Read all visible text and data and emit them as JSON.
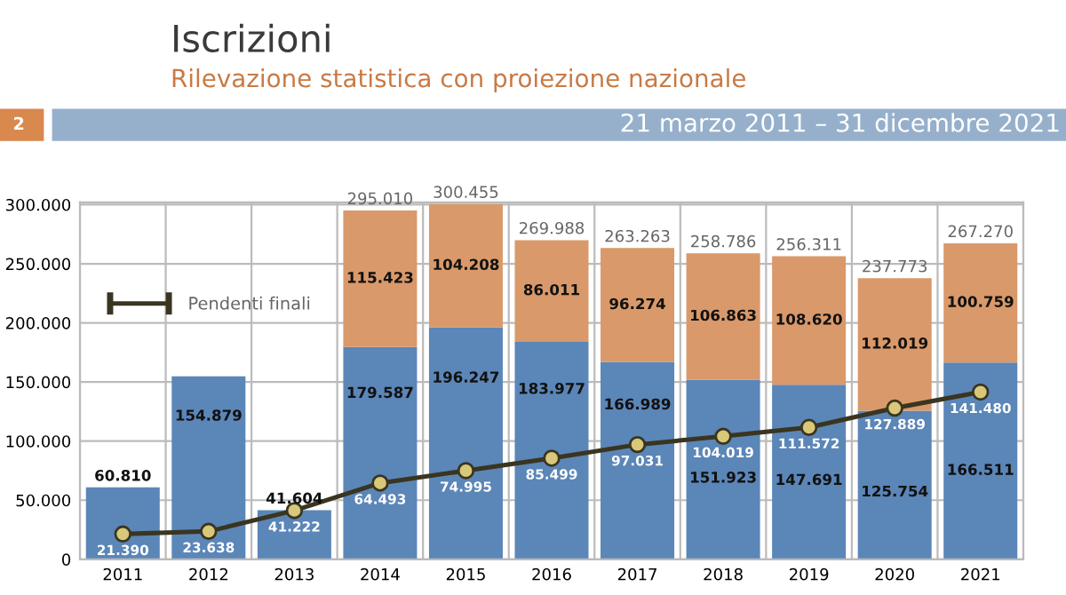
{
  "chart_data": {
    "type": "bar",
    "title": "Iscrizioni",
    "subtitle": "Rilevazione statistica con proiezione nazionale",
    "annotations": [
      "2",
      "21 marzo 2011 – 31 dicembre 2021"
    ],
    "categories": [
      "2011",
      "2012",
      "2013",
      "2014",
      "2015",
      "2016",
      "2017",
      "2018",
      "2019",
      "2020",
      "2021"
    ],
    "stacked": true,
    "series": [
      {
        "color": "#5b86b8",
        "values": [
          60810,
          154879,
          41604,
          179587,
          196247,
          183977,
          166989,
          151923,
          147691,
          125754,
          166511
        ],
        "value_labels": [
          "60.810",
          "154.879",
          "41.604",
          "179.587",
          "196.247",
          "183.977",
          "166.989",
          "151.923",
          "147.691",
          "125.754",
          "166.511"
        ]
      },
      {
        "color": "#d9996a",
        "values": [
          null,
          null,
          null,
          115423,
          104208,
          86011,
          96274,
          106863,
          108620,
          112019,
          100759
        ],
        "value_labels": [
          null,
          null,
          null,
          "115.423",
          "104.208",
          "86.011",
          "96.274",
          "106.863",
          "108.620",
          "112.019",
          "100.759"
        ]
      },
      {
        "name": "Pendenti finali",
        "type": "line",
        "color": "#3a3520",
        "marker": "circle",
        "values": [
          21390,
          23638,
          41222,
          64493,
          74995,
          85499,
          97031,
          104019,
          111572,
          127889,
          141480
        ],
        "value_labels": [
          "21.390",
          "23.638",
          "41.222",
          "64.493",
          "74.995",
          "85.499",
          "97.031",
          "104.019",
          "111.572",
          "127.889",
          "141.480"
        ]
      }
    ],
    "totals": [
      null,
      null,
      null,
      "295.010",
      "300.455",
      "269.988",
      "263.263",
      "258.786",
      "256.311",
      "237.773",
      "267.270"
    ],
    "ylim": [
      0,
      302000
    ],
    "yticks": [
      {
        "value": 0,
        "label": "0"
      },
      {
        "value": 50000,
        "label": "50.000"
      },
      {
        "value": 100000,
        "label": "100.000"
      },
      {
        "value": 150000,
        "label": "150.000"
      },
      {
        "value": 200000,
        "label": "200.000"
      },
      {
        "value": 250000,
        "label": "250.000"
      },
      {
        "value": 300000,
        "label": "300.000"
      }
    ],
    "grid": true,
    "legend": "top left"
  }
}
